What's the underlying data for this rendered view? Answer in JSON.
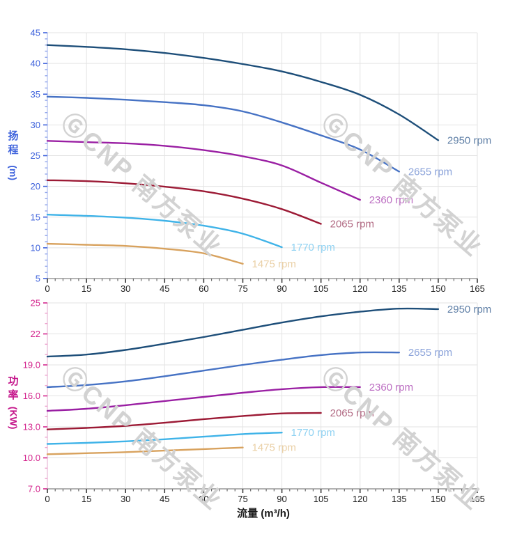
{
  "watermark": {
    "text": "ⒼCNP 南方泵业",
    "color": "#d2d2d2"
  },
  "chart_data": [
    {
      "type": "line",
      "title": "",
      "xlabel": "流量 (m³/h)",
      "ylabel": "扬程 (m)",
      "ylabel_main": "扬程",
      "ylabel_unit": "(m)",
      "xlim": [
        0,
        165
      ],
      "ylim": [
        5,
        45
      ],
      "grid": true,
      "legend_position": "curve-end-labels",
      "axis_accent": "#3f63dc",
      "axis_minor_color": "#8fa4ea",
      "axis_line_color": "#c0cbf2",
      "x_ticks": [
        {
          "v": 0,
          "label": "0"
        },
        {
          "v": 15,
          "label": "15"
        },
        {
          "v": 30,
          "label": "30"
        },
        {
          "v": 45,
          "label": "45"
        },
        {
          "v": 60,
          "label": "60"
        },
        {
          "v": 75,
          "label": "75"
        },
        {
          "v": 90,
          "label": "90"
        },
        {
          "v": 105,
          "label": "105"
        },
        {
          "v": 120,
          "label": "120"
        },
        {
          "v": 135,
          "label": "135"
        },
        {
          "v": 150,
          "label": "150"
        },
        {
          "v": 165,
          "label": "165"
        }
      ],
      "x_minor_step": 3,
      "y_ticks": [
        {
          "v": 45,
          "label": "45"
        },
        {
          "v": 40,
          "label": "40"
        },
        {
          "v": 35,
          "label": "35"
        },
        {
          "v": 30,
          "label": "30"
        },
        {
          "v": 25,
          "label": "25"
        },
        {
          "v": 20,
          "label": "20"
        },
        {
          "v": 15,
          "label": "15"
        },
        {
          "v": 10,
          "label": "10"
        },
        {
          "v": 5,
          "label": "5"
        }
      ],
      "y_minor_step": 1,
      "series": [
        {
          "name": "2950 rpm",
          "color": "#1d4e79",
          "label_color": "#5f7fa6",
          "x": [
            0,
            15,
            30,
            45,
            60,
            75,
            90,
            105,
            120,
            135,
            150
          ],
          "y": [
            43.0,
            42.7,
            42.3,
            41.7,
            40.9,
            39.9,
            38.7,
            37.0,
            34.9,
            31.7,
            27.5
          ]
        },
        {
          "name": "2655 rpm",
          "color": "#4672c4",
          "label_color": "#8ba3da",
          "x": [
            0,
            15,
            30,
            45,
            60,
            75,
            90,
            105,
            120,
            135
          ],
          "y": [
            34.6,
            34.4,
            34.1,
            33.7,
            33.2,
            32.2,
            30.4,
            28.3,
            26.0,
            22.4
          ]
        },
        {
          "name": "2360 rpm",
          "color": "#9a1fa3",
          "label_color": "#bc6ec2",
          "x": [
            0,
            15,
            30,
            45,
            60,
            75,
            90,
            105,
            120
          ],
          "y": [
            27.4,
            27.2,
            27.0,
            26.6,
            25.9,
            24.9,
            23.4,
            20.6,
            17.8
          ]
        },
        {
          "name": "2065 rpm",
          "color": "#9c1a35",
          "label_color": "#b26b84",
          "x": [
            0,
            15,
            30,
            45,
            60,
            75,
            90,
            105
          ],
          "y": [
            21.0,
            20.85,
            20.5,
            19.95,
            19.2,
            18.0,
            16.3,
            13.9
          ]
        },
        {
          "name": "1770 rpm",
          "color": "#3fb3e8",
          "label_color": "#90d2f2",
          "x": [
            0,
            15,
            30,
            45,
            60,
            75,
            90
          ],
          "y": [
            15.4,
            15.2,
            14.9,
            14.4,
            13.6,
            12.3,
            10.1
          ]
        },
        {
          "name": "1475 rpm",
          "color": "#d8a25e",
          "label_color": "#ead0a6",
          "x": [
            0,
            15,
            30,
            45,
            60,
            75
          ],
          "y": [
            10.65,
            10.5,
            10.3,
            9.85,
            9.1,
            7.4
          ]
        }
      ]
    },
    {
      "type": "line",
      "title": "",
      "xlabel": "流量 (m³/h)",
      "ylabel": "功率 (KW)",
      "ylabel_main": "功率",
      "ylabel_unit": "(KW)",
      "xlim": [
        0,
        165
      ],
      "ylim": [
        7,
        25
      ],
      "grid": true,
      "legend_position": "curve-end-labels",
      "axis_accent": "#d4268e",
      "axis_minor_color": "#eda2cd",
      "axis_line_color": "#ecc6dd",
      "x_ticks": [
        {
          "v": 0,
          "label": "0"
        },
        {
          "v": 15,
          "label": "15"
        },
        {
          "v": 30,
          "label": "30"
        },
        {
          "v": 45,
          "label": "45"
        },
        {
          "v": 60,
          "label": "60"
        },
        {
          "v": 75,
          "label": "75"
        },
        {
          "v": 90,
          "label": "90"
        },
        {
          "v": 105,
          "label": "105"
        },
        {
          "v": 120,
          "label": "120"
        },
        {
          "v": 135,
          "label": "135"
        },
        {
          "v": 150,
          "label": "150"
        },
        {
          "v": 165,
          "label": "165"
        }
      ],
      "x_minor_step": 3,
      "y_ticks": [
        {
          "v": 25,
          "label": "25"
        },
        {
          "v": 22,
          "label": "22"
        },
        {
          "v": 19,
          "label": "19.0"
        },
        {
          "v": 16,
          "label": "16.0"
        },
        {
          "v": 13,
          "label": "13.0"
        },
        {
          "v": 10,
          "label": "10.0"
        },
        {
          "v": 7,
          "label": "7.0"
        }
      ],
      "y_minor_step": 1,
      "series": [
        {
          "name": "2950 rpm",
          "color": "#1d4e79",
          "label_color": "#5f7fa6",
          "x": [
            0,
            15,
            30,
            45,
            60,
            75,
            90,
            105,
            120,
            135,
            150
          ],
          "y": [
            19.8,
            20.0,
            20.45,
            21.05,
            21.7,
            22.4,
            23.1,
            23.7,
            24.15,
            24.45,
            24.4
          ]
        },
        {
          "name": "2655 rpm",
          "color": "#4672c4",
          "label_color": "#8ba3da",
          "x": [
            0,
            15,
            30,
            45,
            60,
            75,
            90,
            105,
            120,
            135
          ],
          "y": [
            16.85,
            17.05,
            17.4,
            17.9,
            18.45,
            19.0,
            19.5,
            19.95,
            20.2,
            20.2
          ]
        },
        {
          "name": "2360 rpm",
          "color": "#9a1fa3",
          "label_color": "#bc6ec2",
          "x": [
            0,
            15,
            30,
            45,
            60,
            75,
            90,
            105,
            120
          ],
          "y": [
            14.55,
            14.75,
            15.1,
            15.5,
            15.9,
            16.3,
            16.65,
            16.85,
            16.85
          ]
        },
        {
          "name": "2065 rpm",
          "color": "#9c1a35",
          "label_color": "#b26b84",
          "x": [
            0,
            15,
            30,
            45,
            60,
            75,
            90,
            105
          ],
          "y": [
            12.75,
            12.9,
            13.1,
            13.4,
            13.75,
            14.05,
            14.3,
            14.35
          ]
        },
        {
          "name": "1770 rpm",
          "color": "#3fb3e8",
          "label_color": "#90d2f2",
          "x": [
            0,
            15,
            30,
            45,
            60,
            75,
            90
          ],
          "y": [
            11.35,
            11.45,
            11.6,
            11.8,
            12.05,
            12.3,
            12.45
          ]
        },
        {
          "name": "1475 rpm",
          "color": "#d8a25e",
          "label_color": "#ead0a6",
          "x": [
            0,
            15,
            30,
            45,
            60,
            75
          ],
          "y": [
            10.35,
            10.45,
            10.55,
            10.7,
            10.85,
            11.0
          ]
        }
      ]
    }
  ]
}
